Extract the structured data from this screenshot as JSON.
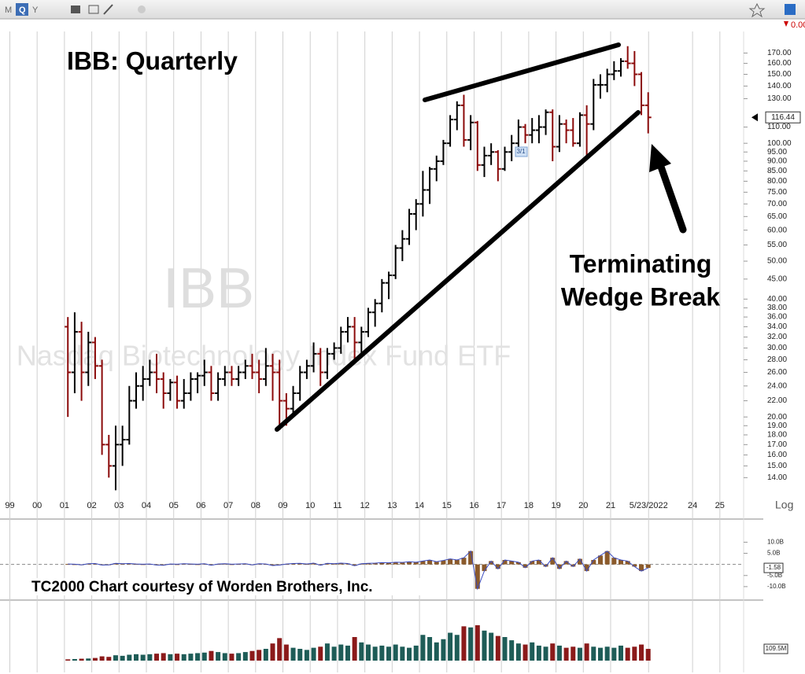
{
  "toolbar": {
    "periods": [
      "M",
      "Q",
      "Y"
    ],
    "change": "0.00"
  },
  "chart_data": [
    {
      "type": "ohlc",
      "title": "IBB:  Quarterly",
      "watermark_symbol": "IBB",
      "watermark_name": "Nasdaq Biotechnology Index Fund ETF",
      "annotation": [
        "Terminating",
        "Wedge Break"
      ],
      "split_label": "3/1",
      "credit": "TC2000 Chart courtesy of Worden Brothers, Inc.",
      "scale_label": "Log",
      "log": true,
      "up_color": "#000000",
      "down_color": "#8b0a0a",
      "x": [
        2001.125,
        2001.375,
        2001.625,
        2001.875,
        2002.125,
        2002.375,
        2002.625,
        2002.875,
        2003.125,
        2003.375,
        2003.625,
        2003.875,
        2004.125,
        2004.375,
        2004.625,
        2004.875,
        2005.125,
        2005.375,
        2005.625,
        2005.875,
        2006.125,
        2006.375,
        2006.625,
        2006.875,
        2007.125,
        2007.375,
        2007.625,
        2007.875,
        2008.125,
        2008.375,
        2008.625,
        2008.875,
        2009.125,
        2009.375,
        2009.625,
        2009.875,
        2010.125,
        2010.375,
        2010.625,
        2010.875,
        2011.125,
        2011.375,
        2011.625,
        2011.875,
        2012.125,
        2012.375,
        2012.625,
        2012.875,
        2013.125,
        2013.375,
        2013.625,
        2013.875,
        2014.125,
        2014.375,
        2014.625,
        2014.875,
        2015.125,
        2015.375,
        2015.625,
        2015.875,
        2016.125,
        2016.375,
        2016.625,
        2016.875,
        2017.125,
        2017.375,
        2017.625,
        2017.875,
        2018.125,
        2018.375,
        2018.625,
        2018.875,
        2019.125,
        2019.375,
        2019.625,
        2019.875,
        2020.125,
        2020.375,
        2020.625,
        2020.875,
        2021.125,
        2021.375,
        2021.625,
        2021.875,
        2022.125,
        2022.375
      ],
      "open": [
        34,
        26,
        33,
        26,
        31,
        27,
        17,
        15,
        17,
        17.5,
        22,
        24,
        25,
        26,
        25,
        23,
        24.5,
        22,
        23,
        25,
        25.5,
        26,
        23,
        25,
        26,
        25,
        26,
        27,
        26,
        25,
        27,
        26,
        22,
        21,
        23,
        26,
        27,
        29,
        26,
        29,
        30,
        33,
        34,
        31,
        33,
        37,
        39,
        44,
        46,
        54,
        57,
        66,
        70,
        76,
        86,
        90,
        100,
        115,
        125,
        102,
        113,
        88,
        93,
        95,
        86,
        95,
        100,
        110,
        105,
        108,
        110,
        120,
        98,
        112,
        108,
        100,
        118,
        112,
        141,
        141,
        150,
        153,
        162,
        160,
        150,
        125
      ],
      "high": [
        36,
        37,
        35,
        33,
        32,
        28,
        18,
        19,
        19,
        24,
        26,
        27,
        28,
        29,
        26,
        25,
        25.5,
        25,
        26,
        26,
        28,
        27,
        26,
        27,
        27,
        27,
        28,
        29,
        28,
        30,
        29,
        28,
        23,
        24,
        27,
        28,
        31,
        30,
        30,
        31,
        34,
        36,
        36,
        34,
        38,
        40,
        45,
        47,
        55,
        60,
        68,
        72,
        85,
        87,
        93,
        102,
        118,
        128,
        133,
        118,
        114,
        98,
        100,
        96,
        98,
        105,
        115,
        112,
        116,
        118,
        122,
        122,
        118,
        115,
        116,
        120,
        125,
        146,
        150,
        155,
        162,
        165,
        177,
        172,
        152,
        135
      ],
      "low": [
        20,
        23,
        22,
        24,
        25,
        16,
        14,
        13,
        15,
        17,
        21,
        22,
        24,
        23,
        21,
        22,
        21,
        21,
        22,
        23,
        24,
        22,
        22,
        24,
        24,
        24,
        25,
        25,
        23,
        24,
        22,
        18.5,
        19,
        20,
        22,
        25,
        26,
        24,
        25,
        28,
        29,
        31,
        28,
        29,
        32,
        34,
        37,
        40,
        45,
        50,
        55,
        60,
        65,
        70,
        80,
        88,
        98,
        108,
        98,
        96,
        85,
        82,
        88,
        80,
        85,
        90,
        98,
        100,
        100,
        100,
        105,
        90,
        95,
        100,
        98,
        98,
        92,
        108,
        130,
        135,
        145,
        148,
        155,
        140,
        118,
        106
      ],
      "close": [
        26,
        33,
        26,
        31,
        27,
        17,
        15,
        17,
        17.5,
        22,
        24,
        25,
        26,
        25,
        23,
        24.5,
        22,
        23,
        25,
        25.5,
        26,
        23,
        25,
        26,
        25,
        26,
        27,
        26,
        25,
        27,
        26,
        22,
        21,
        23,
        26,
        27,
        29,
        26,
        29,
        30,
        33,
        34,
        31,
        33,
        37,
        39,
        44,
        46,
        54,
        57,
        66,
        70,
        76,
        86,
        90,
        100,
        115,
        125,
        102,
        113,
        88,
        93,
        95,
        86,
        95,
        100,
        110,
        105,
        108,
        110,
        120,
        98,
        112,
        108,
        100,
        118,
        112,
        141,
        141,
        150,
        153,
        162,
        160,
        150,
        125,
        116.44
      ],
      "xlim": [
        1998.64,
        2025.87
      ],
      "xticks": [
        {
          "value": 1999,
          "label": "99"
        },
        {
          "value": 2000,
          "label": "00"
        },
        {
          "value": 2001,
          "label": "01"
        },
        {
          "value": 2002,
          "label": "02"
        },
        {
          "value": 2003,
          "label": "03"
        },
        {
          "value": 2004,
          "label": "04"
        },
        {
          "value": 2005,
          "label": "05"
        },
        {
          "value": 2006,
          "label": "06"
        },
        {
          "value": 2007,
          "label": "07"
        },
        {
          "value": 2008,
          "label": "08"
        },
        {
          "value": 2009,
          "label": "09"
        },
        {
          "value": 2010,
          "label": "10"
        },
        {
          "value": 2011,
          "label": "11"
        },
        {
          "value": 2012,
          "label": "12"
        },
        {
          "value": 2013,
          "label": "13"
        },
        {
          "value": 2014,
          "label": "14"
        },
        {
          "value": 2015,
          "label": "15"
        },
        {
          "value": 2016,
          "label": "16"
        },
        {
          "value": 2017,
          "label": "17"
        },
        {
          "value": 2018,
          "label": "18"
        },
        {
          "value": 2019,
          "label": "19"
        },
        {
          "value": 2020,
          "label": "20"
        },
        {
          "value": 2021,
          "label": "21"
        },
        {
          "value": 2022.39,
          "label": "5/23/2022"
        },
        {
          "value": 2024,
          "label": "24"
        },
        {
          "value": 2025,
          "label": "25"
        }
      ],
      "ylim": [
        12.9,
        193
      ],
      "yticks": [
        {
          "value": 14,
          "label": "14.00"
        },
        {
          "value": 15,
          "label": "15.00"
        },
        {
          "value": 16,
          "label": "16.00"
        },
        {
          "value": 17,
          "label": "17.00"
        },
        {
          "value": 18,
          "label": "18.00"
        },
        {
          "value": 19,
          "label": "19.00"
        },
        {
          "value": 20,
          "label": "20.00"
        },
        {
          "value": 22,
          "label": "22.00"
        },
        {
          "value": 24,
          "label": "24.00"
        },
        {
          "value": 26,
          "label": "26.00"
        },
        {
          "value": 28,
          "label": "28.00"
        },
        {
          "value": 30,
          "label": "30.00"
        },
        {
          "value": 32,
          "label": "32.00"
        },
        {
          "value": 34,
          "label": "34.00"
        },
        {
          "value": 36,
          "label": "36.00"
        },
        {
          "value": 38,
          "label": "38.00"
        },
        {
          "value": 40,
          "label": "40.00"
        },
        {
          "value": 45,
          "label": "45.00"
        },
        {
          "value": 50,
          "label": "50.00"
        },
        {
          "value": 55,
          "label": "55.00"
        },
        {
          "value": 60,
          "label": "60.00"
        },
        {
          "value": 65,
          "label": "65.00"
        },
        {
          "value": 70,
          "label": "70.00"
        },
        {
          "value": 75,
          "label": "75.00"
        },
        {
          "value": 80,
          "label": "80.00"
        },
        {
          "value": 85,
          "label": "85.00"
        },
        {
          "value": 90,
          "label": "90.00"
        },
        {
          "value": 95,
          "label": "95.00"
        },
        {
          "value": 100,
          "label": "100.00"
        },
        {
          "value": 110,
          "label": "110.00"
        },
        {
          "value": 130,
          "label": "130.00"
        },
        {
          "value": 140,
          "label": "140.00"
        },
        {
          "value": 150,
          "label": "150.00"
        },
        {
          "value": 160,
          "label": "160.00"
        },
        {
          "value": 170,
          "label": "170.00"
        }
      ]
    },
    {
      "type": "histogram-line",
      "color": "#8b5a2b",
      "line_color": "#3b4cc0",
      "values": [
        0.2,
        0.1,
        -0.2,
        0.3,
        0.4,
        -0.3,
        -0.2,
        0.5,
        0.3,
        0.4,
        0.2,
        0.1,
        0.2,
        -0.3,
        -0.4,
        0.2,
        0.1,
        0.3,
        0.2,
        0.1,
        0.3,
        -0.4,
        0.2,
        0.3,
        0.1,
        0.2,
        0.3,
        -0.2,
        0.3,
        0.2,
        -0.5,
        -0.3,
        0.2,
        0.4,
        0.5,
        0.2,
        0.6,
        -0.4,
        0.5,
        0.3,
        0.6,
        0.4,
        -0.6,
        0.3,
        0.5,
        0.6,
        0.8,
        0.7,
        1.0,
        0.9,
        1.2,
        1.0,
        1.5,
        2.0,
        1.2,
        1.8,
        2.5,
        2.0,
        3.0,
        6.0,
        -11,
        -3,
        1.5,
        -2,
        2,
        1.5,
        1.0,
        -1.5,
        1.5,
        2,
        -1,
        3,
        -2,
        1.5,
        -1,
        2.5,
        -3,
        2,
        4,
        6,
        3,
        2,
        1.5,
        -1,
        -3,
        -1.58
      ],
      "ylim": [
        -15,
        19
      ],
      "yticks": [
        {
          "value": 10,
          "label": "10.0B"
        },
        {
          "value": 5,
          "label": "5.0B"
        },
        {
          "value": -5,
          "label": "-5.0B"
        },
        {
          "value": -10,
          "label": "-10.0B"
        }
      ]
    },
    {
      "type": "volume",
      "up_color": "#1e5c57",
      "down_color": "#8b1a1a",
      "values": [
        12,
        15,
        18,
        20,
        25,
        40,
        35,
        50,
        45,
        55,
        60,
        55,
        60,
        65,
        70,
        60,
        65,
        60,
        65,
        70,
        75,
        90,
        80,
        70,
        65,
        70,
        80,
        90,
        100,
        110,
        160,
        210,
        150,
        120,
        110,
        100,
        120,
        130,
        160,
        130,
        150,
        140,
        220,
        170,
        150,
        130,
        140,
        130,
        150,
        130,
        120,
        140,
        240,
        220,
        170,
        200,
        260,
        240,
        320,
        310,
        330,
        280,
        260,
        230,
        220,
        190,
        160,
        150,
        170,
        140,
        130,
        160,
        140,
        120,
        130,
        120,
        160,
        130,
        120,
        130,
        120,
        140,
        120,
        130,
        150,
        109.5
      ],
      "last_label": "109.5M",
      "ylim": [
        0,
        440
      ]
    }
  ]
}
